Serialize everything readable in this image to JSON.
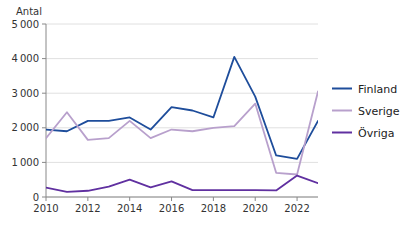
{
  "chart_data": {
    "type": "line",
    "y_label": "Antal",
    "x": [
      2010,
      2011,
      2012,
      2013,
      2014,
      2015,
      2016,
      2017,
      2018,
      2019,
      2020,
      2021,
      2022,
      2023
    ],
    "series": [
      {
        "name": "Finland",
        "color": "#1e4d9b",
        "values": [
          1950,
          1900,
          2200,
          2200,
          2300,
          1950,
          2600,
          2500,
          2300,
          4050,
          2900,
          1200,
          1100,
          2200
        ]
      },
      {
        "name": "Sverige",
        "color": "#b8a0cc",
        "values": [
          1700,
          2450,
          1650,
          1700,
          2200,
          1700,
          1950,
          1900,
          2000,
          2050,
          2700,
          700,
          650,
          3050
        ]
      },
      {
        "name": "Övriga",
        "color": "#6030a0",
        "values": [
          270,
          150,
          180,
          300,
          500,
          280,
          450,
          200,
          200,
          200,
          200,
          190,
          620,
          400
        ]
      }
    ],
    "xlim": [
      2010,
      2023
    ],
    "xticks": [
      2010,
      2012,
      2014,
      2016,
      2018,
      2020,
      2022
    ],
    "ylim": [
      0,
      5000
    ],
    "yticks": [
      0,
      {
        "value": 1000,
        "label": "1 000"
      },
      {
        "value": 2000,
        "label": "2 000"
      },
      {
        "value": 3000,
        "label": "3 000"
      },
      {
        "value": 4000,
        "label": "4 000"
      },
      {
        "value": 5000,
        "label": "5 000"
      }
    ],
    "grid": true,
    "legend": "right"
  }
}
